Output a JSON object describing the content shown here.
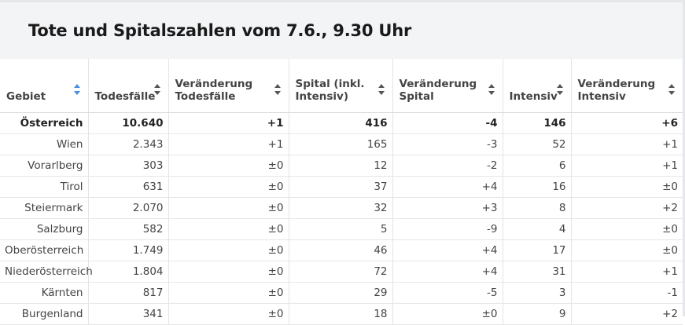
{
  "title": "Tote und Spitalszahlen vom 7.6., 9.30 Uhr",
  "columns": [
    "Gebiet",
    "Todesfälle",
    "Veränderung Todesfälle",
    "Spital (inkl. Intensiv)",
    "Veränderung Spital",
    "Intensiv",
    "Veränderung Intensiv"
  ],
  "sorted_column": "Gebiet",
  "rows": [
    {
      "gebiet": "Österreich",
      "todesfaelle": "10.640",
      "ver_tod": "+1",
      "spital": "416",
      "ver_spital": "-4",
      "intensiv": "146",
      "ver_intensiv": "+6"
    },
    {
      "gebiet": "Wien",
      "todesfaelle": "2.343",
      "ver_tod": "+1",
      "spital": "165",
      "ver_spital": "-3",
      "intensiv": "52",
      "ver_intensiv": "+1"
    },
    {
      "gebiet": "Vorarlberg",
      "todesfaelle": "303",
      "ver_tod": "±0",
      "spital": "12",
      "ver_spital": "-2",
      "intensiv": "6",
      "ver_intensiv": "+1"
    },
    {
      "gebiet": "Tirol",
      "todesfaelle": "631",
      "ver_tod": "±0",
      "spital": "37",
      "ver_spital": "+4",
      "intensiv": "16",
      "ver_intensiv": "±0"
    },
    {
      "gebiet": "Steiermark",
      "todesfaelle": "2.070",
      "ver_tod": "±0",
      "spital": "32",
      "ver_spital": "+3",
      "intensiv": "8",
      "ver_intensiv": "+2"
    },
    {
      "gebiet": "Salzburg",
      "todesfaelle": "582",
      "ver_tod": "±0",
      "spital": "5",
      "ver_spital": "-9",
      "intensiv": "4",
      "ver_intensiv": "±0"
    },
    {
      "gebiet": "Oberösterreich",
      "todesfaelle": "1.749",
      "ver_tod": "±0",
      "spital": "46",
      "ver_spital": "+4",
      "intensiv": "17",
      "ver_intensiv": "±0"
    },
    {
      "gebiet": "Niederösterreich",
      "todesfaelle": "1.804",
      "ver_tod": "±0",
      "spital": "72",
      "ver_spital": "+4",
      "intensiv": "31",
      "ver_intensiv": "+1"
    },
    {
      "gebiet": "Kärnten",
      "todesfaelle": "817",
      "ver_tod": "±0",
      "spital": "29",
      "ver_spital": "-5",
      "intensiv": "3",
      "ver_intensiv": "-1"
    },
    {
      "gebiet": "Burgenland",
      "todesfaelle": "341",
      "ver_tod": "±0",
      "spital": "18",
      "ver_spital": "±0",
      "intensiv": "9",
      "ver_intensiv": "+2"
    }
  ]
}
